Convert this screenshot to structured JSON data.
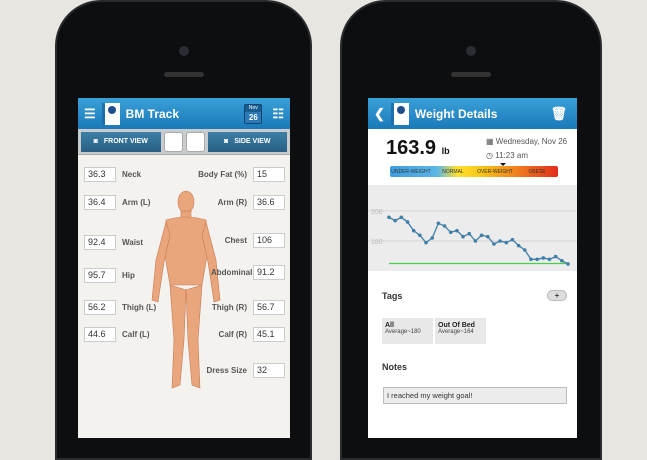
{
  "left_screen": {
    "title": "BM Track",
    "date": {
      "month": "Nov",
      "day": "26"
    },
    "toolbar": {
      "front_view": "FRONT VIEW",
      "side_view": "SIDE VIEW"
    },
    "measurements": [
      {
        "label": "Neck",
        "value": "36.3",
        "side": "left"
      },
      {
        "label": "Arm (L)",
        "value": "36.4",
        "side": "left"
      },
      {
        "label": "Waist",
        "value": "92.4",
        "side": "left"
      },
      {
        "label": "Hip",
        "value": "95.7",
        "side": "left"
      },
      {
        "label": "Thigh (L)",
        "value": "56.2",
        "side": "left"
      },
      {
        "label": "Calf (L)",
        "value": "44.6",
        "side": "left"
      },
      {
        "label": "Body Fat (%)",
        "value": "15",
        "side": "right"
      },
      {
        "label": "Arm (R)",
        "value": "36.6",
        "side": "right"
      },
      {
        "label": "Chest",
        "value": "106",
        "side": "right"
      },
      {
        "label": "Abdominal",
        "value": "91.2",
        "side": "right"
      },
      {
        "label": "Thigh (R)",
        "value": "56.7",
        "side": "right"
      },
      {
        "label": "Calf (R)",
        "value": "45.1",
        "side": "right"
      },
      {
        "label": "Dress Size",
        "value": "32",
        "side": "right"
      }
    ]
  },
  "right_screen": {
    "title": "Weight Details",
    "weight": "163.9",
    "unit": "lb",
    "date": "Wednesday, Nov 26",
    "time": "11:23 am",
    "bmi_bar": [
      "UNDER-WEIGHT",
      "NORMAL",
      "OVER-WEIGHT",
      "OBESE"
    ],
    "bmi_marker_percent": 67,
    "tags_title": "Tags",
    "add_label": "+",
    "tags": [
      {
        "name": "All",
        "avg": "Average~180"
      },
      {
        "name": "Out Of Bed",
        "avg": "Average~164"
      }
    ],
    "notes_title": "Notes",
    "notes_value": "I reached my weight goal!"
  },
  "chart_data": {
    "type": "line",
    "y_ticks": [
      200,
      180
    ],
    "ylim": [
      160,
      205
    ],
    "grid": true,
    "goal": 165,
    "colors": {
      "line": "#3f7fa8",
      "goal": "#4cd04c"
    },
    "values": [
      195.8,
      193.6,
      195.8,
      192.7,
      186.9,
      183.8,
      178.9,
      182,
      191.8,
      190,
      185.8,
      186.9,
      182.9,
      184.9,
      180,
      183.8,
      182.9,
      178,
      180,
      178.9,
      180.9,
      176.9,
      174,
      167.8,
      167.8,
      168.7,
      167.8,
      169.6,
      166.9,
      164.7
    ]
  }
}
